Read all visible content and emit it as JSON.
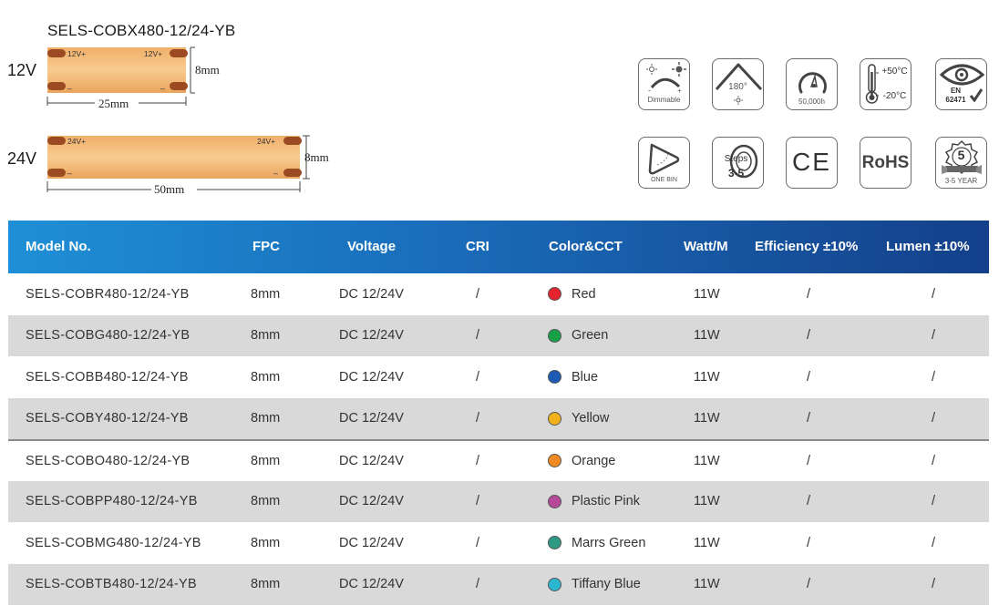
{
  "header": {
    "model": "SELS-COBX480-12/24-YB"
  },
  "strips": [
    {
      "voltage_label": "12V",
      "pos": "12V+",
      "neg": "–",
      "width_label": "8mm",
      "length_label": "25mm"
    },
    {
      "voltage_label": "24V",
      "pos": "24V+",
      "neg": "–",
      "width_label": "8mm",
      "length_label": "50mm"
    }
  ],
  "icons": [
    {
      "name": "dimmable-icon",
      "text": "Dimmable"
    },
    {
      "name": "beam-angle-icon",
      "text": "180°"
    },
    {
      "name": "lifetime-icon",
      "text": "50,000h"
    },
    {
      "name": "temperature-icon",
      "top": "+50°C",
      "bottom": "-20°C"
    },
    {
      "name": "en62471-icon",
      "line1": "EN",
      "line2": "62471"
    },
    {
      "name": "one-bin-icon",
      "text": "ONE BIN"
    },
    {
      "name": "steps-icon",
      "line1": "Steps",
      "line2": "3-5"
    },
    {
      "name": "ce-icon",
      "text": "CE"
    },
    {
      "name": "rohs-icon",
      "text": "RoHS"
    },
    {
      "name": "warranty-icon",
      "big": "5",
      "text": "3-5 YEAR"
    }
  ],
  "table": {
    "headers": [
      "Model No.",
      "FPC",
      "Voltage",
      "CRI",
      "Color&CCT",
      "Watt/M",
      "Efficiency ±10%",
      "Lumen ±10%"
    ],
    "rows": [
      {
        "model": "SELS-COBR480-12/24-YB",
        "fpc": "8mm",
        "voltage": "DC 12/24V",
        "cri": "/",
        "color": "Red",
        "swatch": "#e5232e",
        "watt": "11W",
        "eff": "/",
        "lumen": "/"
      },
      {
        "model": "SELS-COBG480-12/24-YB",
        "fpc": "8mm",
        "voltage": "DC 12/24V",
        "cri": "/",
        "color": "Green",
        "swatch": "#18a048",
        "watt": "11W",
        "eff": "/",
        "lumen": "/"
      },
      {
        "model": "SELS-COBB480-12/24-YB",
        "fpc": "8mm",
        "voltage": "DC 12/24V",
        "cri": "/",
        "color": "Blue",
        "swatch": "#1d5bb5",
        "watt": "11W",
        "eff": "/",
        "lumen": "/"
      },
      {
        "model": "SELS-COBY480-12/24-YB",
        "fpc": "8mm",
        "voltage": "DC 12/24V",
        "cri": "/",
        "color": "Yellow",
        "swatch": "#f2b21b",
        "watt": "11W",
        "eff": "/",
        "lumen": "/"
      },
      {
        "model": "SELS-COBO480-12/24-YB",
        "fpc": "8mm",
        "voltage": "DC 12/24V",
        "cri": "/",
        "color": "Orange",
        "swatch": "#ef8a22",
        "watt": "11W",
        "eff": "/",
        "lumen": "/"
      },
      {
        "model": "SELS-COBPP480-12/24-YB",
        "fpc": "8mm",
        "voltage": "DC 12/24V",
        "cri": "/",
        "color": "Plastic Pink",
        "swatch": "#b8489a",
        "watt": "11W",
        "eff": "/",
        "lumen": "/"
      },
      {
        "model": "SELS-COBMG480-12/24-YB",
        "fpc": "8mm",
        "voltage": "DC 12/24V",
        "cri": "/",
        "color": "Marrs Green",
        "swatch": "#2e9a84",
        "watt": "11W",
        "eff": "/",
        "lumen": "/"
      },
      {
        "model": "SELS-COBTB480-12/24-YB",
        "fpc": "8mm",
        "voltage": "DC 12/24V",
        "cri": "/",
        "color": "Tiffany Blue",
        "swatch": "#2bb5cf",
        "watt": "11W",
        "eff": "/",
        "lumen": "/"
      }
    ]
  }
}
